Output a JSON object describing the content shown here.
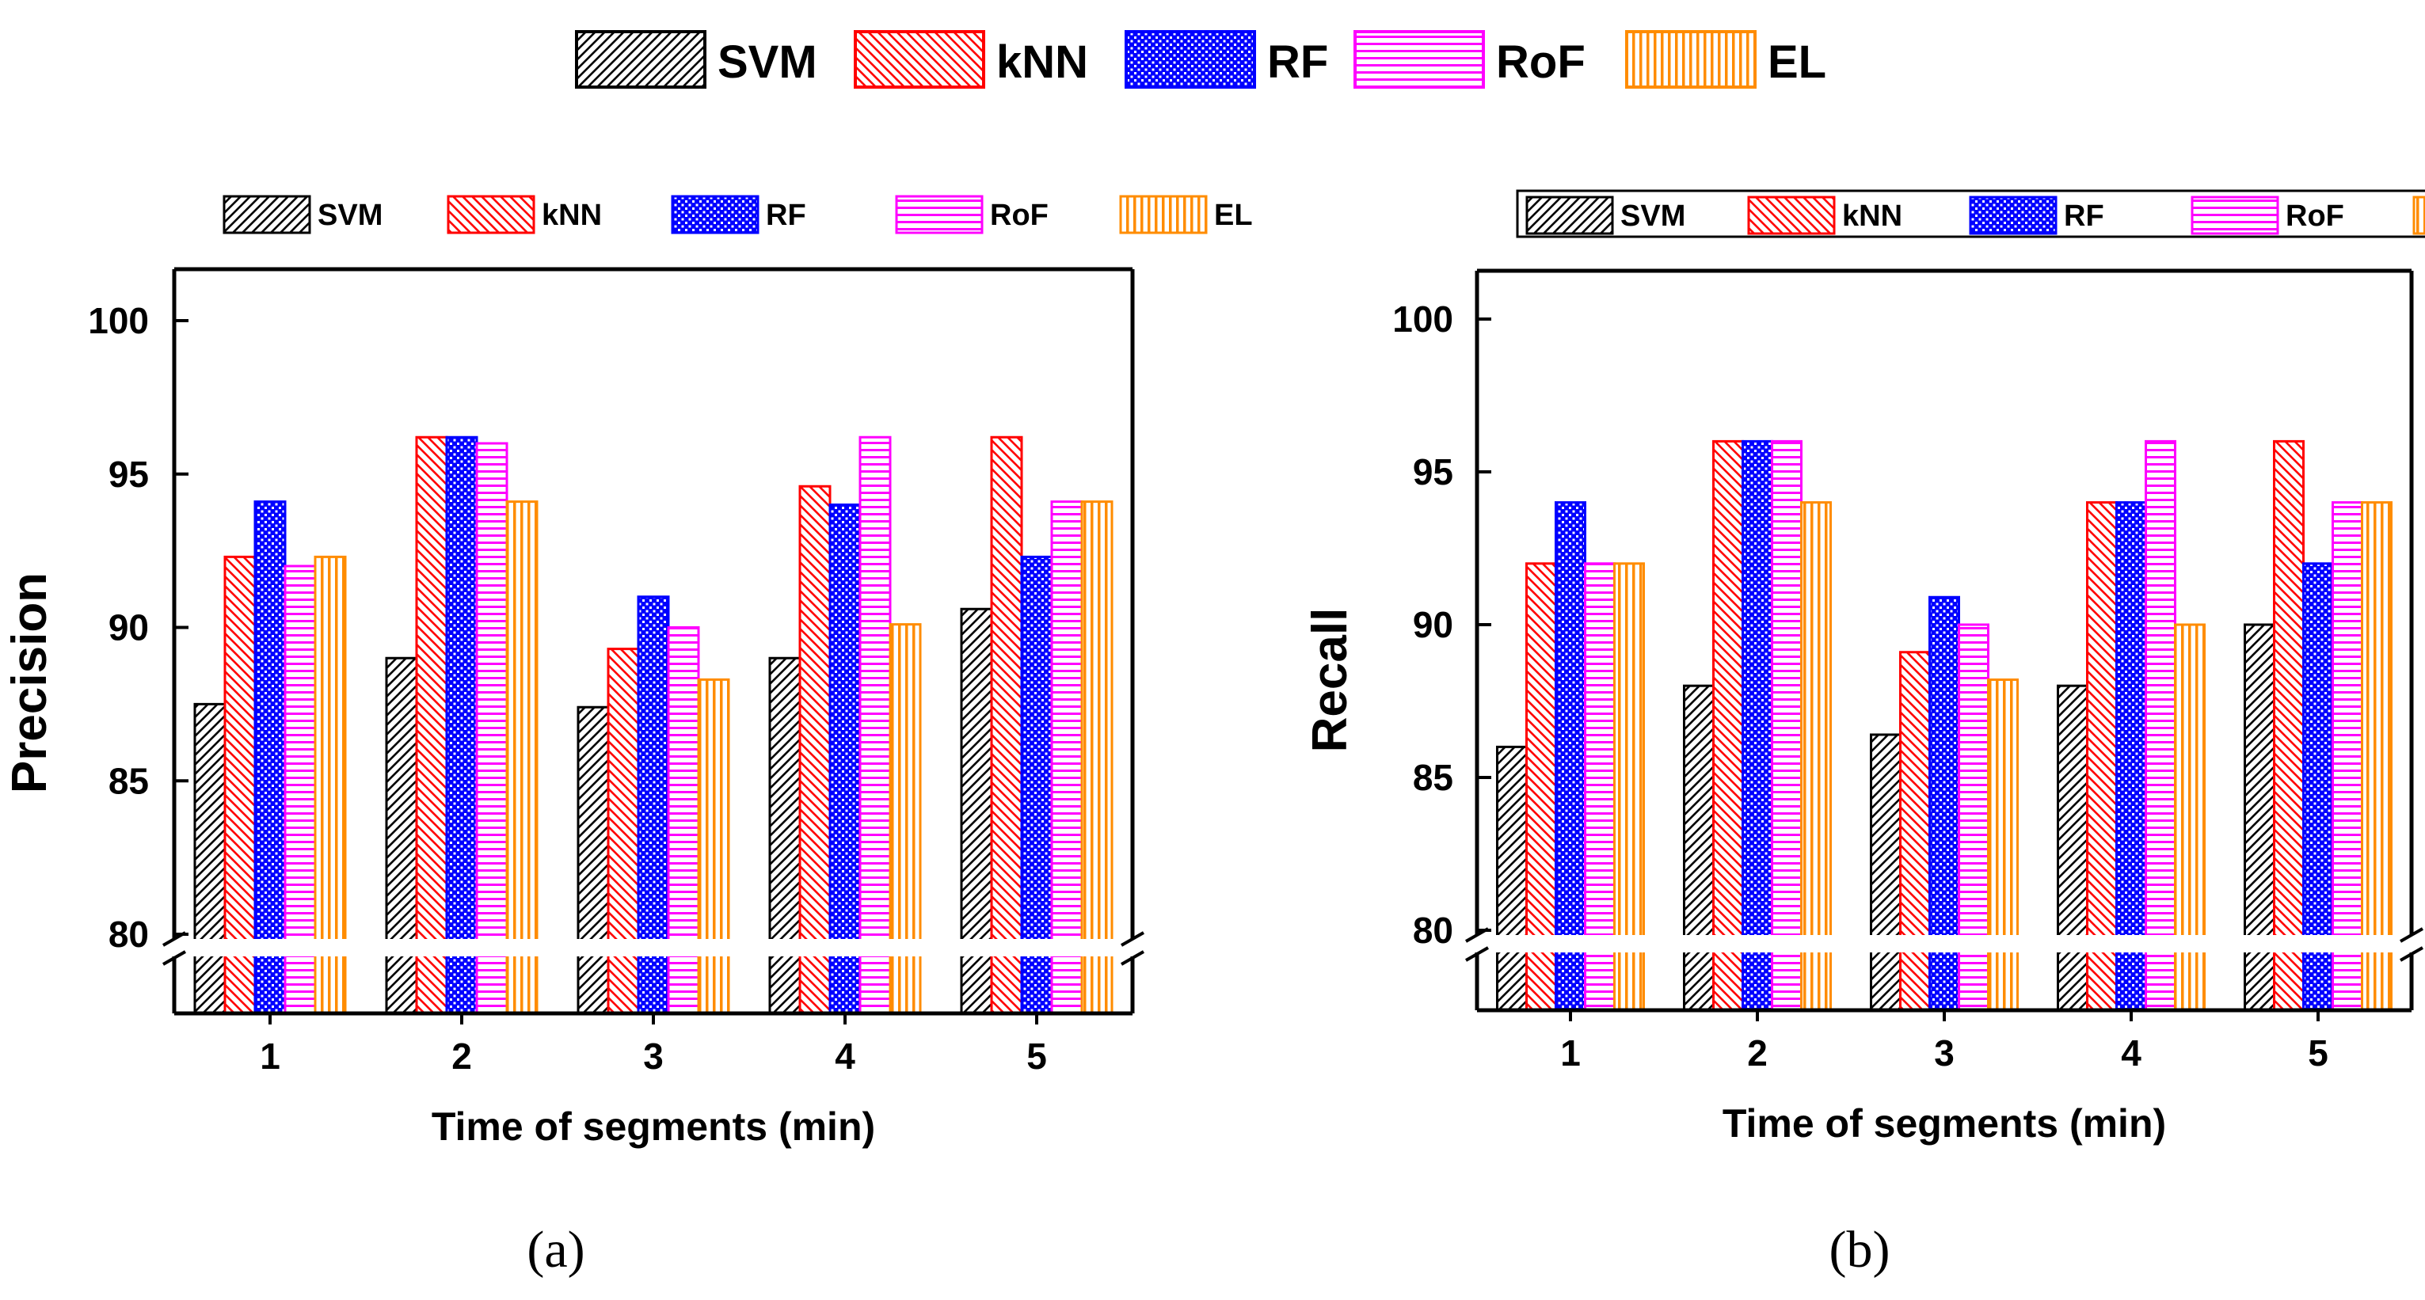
{
  "colors": {
    "SVM": "#000000",
    "kNN": "#ff0000",
    "RF": "#0000ff",
    "RoF": "#ff00ff",
    "EL": "#ff8c00",
    "axis": "#000000",
    "break_fill": "#ffffff"
  },
  "legend": {
    "entries": [
      {
        "name": "SVM",
        "pattern": "diag-right"
      },
      {
        "name": "kNN",
        "pattern": "diag-left"
      },
      {
        "name": "RF",
        "pattern": "dots"
      },
      {
        "name": "RoF",
        "pattern": "horizontal"
      },
      {
        "name": "EL",
        "pattern": "vertical"
      }
    ]
  },
  "chart_data": [
    {
      "type": "bar",
      "panel_label": "(a)",
      "title": "",
      "xlabel": "Time of segments (min)",
      "ylabel": "Precision",
      "categories": [
        "1",
        "2",
        "3",
        "4",
        "5"
      ],
      "ylim": [
        80,
        102
      ],
      "axis_break": 80,
      "yticks": [
        80,
        85,
        90,
        95,
        100
      ],
      "ytick_labels": [
        "80",
        "85",
        "90",
        "95",
        "100"
      ],
      "legend_boxed": false,
      "series": [
        {
          "name": "SVM",
          "values": [
            87.5,
            89.0,
            87.4,
            89.0,
            90.6
          ]
        },
        {
          "name": "kNN",
          "values": [
            92.3,
            96.2,
            89.3,
            94.6,
            96.2
          ]
        },
        {
          "name": "RF",
          "values": [
            94.1,
            96.2,
            91.0,
            94.0,
            92.3
          ]
        },
        {
          "name": "RoF",
          "values": [
            92.0,
            96.0,
            90.0,
            96.2,
            94.1
          ]
        },
        {
          "name": "EL",
          "values": [
            92.3,
            94.1,
            88.3,
            90.1,
            94.1
          ]
        }
      ]
    },
    {
      "type": "bar",
      "panel_label": "(b)",
      "title": "",
      "xlabel": "Time of segments (min)",
      "ylabel": "Recall",
      "categories": [
        "1",
        "2",
        "3",
        "4",
        "5"
      ],
      "ylim": [
        80,
        102
      ],
      "axis_break": 80,
      "yticks": [
        80,
        85,
        90,
        95,
        100
      ],
      "ytick_labels": [
        "80",
        "85",
        "90",
        "95",
        "100"
      ],
      "legend_boxed": true,
      "series": [
        {
          "name": "SVM",
          "values": [
            86.0,
            88.0,
            86.4,
            88.0,
            90.0
          ]
        },
        {
          "name": "kNN",
          "values": [
            92.0,
            96.0,
            89.1,
            94.0,
            96.0
          ]
        },
        {
          "name": "RF",
          "values": [
            94.0,
            96.0,
            90.9,
            94.0,
            92.0
          ]
        },
        {
          "name": "RoF",
          "values": [
            92.0,
            96.0,
            90.0,
            96.0,
            94.0
          ]
        },
        {
          "name": "EL",
          "values": [
            92.0,
            94.0,
            88.2,
            90.0,
            94.0
          ]
        }
      ]
    }
  ]
}
